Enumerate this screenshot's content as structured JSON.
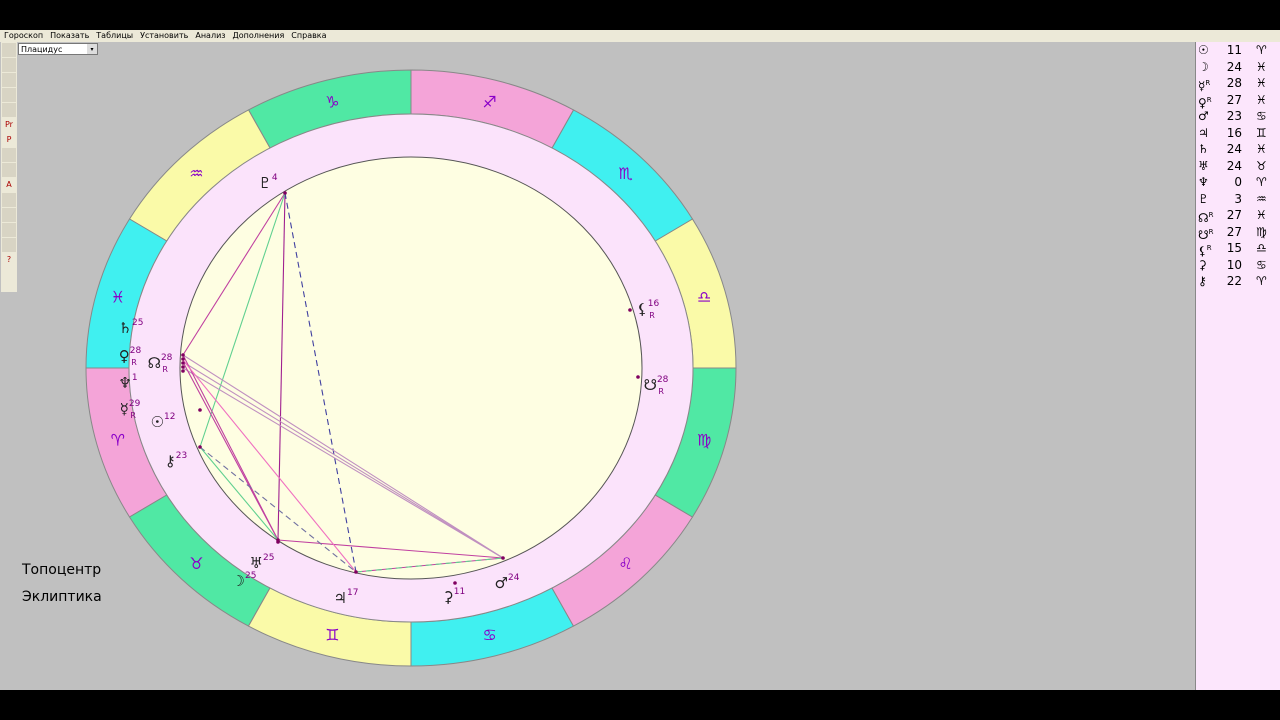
{
  "menu": [
    "Гороскоп",
    "Показать",
    "Таблицы",
    "Установить",
    "Анализ",
    "Дополнения",
    "Справка"
  ],
  "house_system": "Плацидус",
  "toolbar_labels": [
    "Pr",
    "P",
    "A",
    "?"
  ],
  "signs": [
    "♎",
    "♏",
    "♐",
    "♑",
    "♒",
    "♓",
    "♈",
    "♉",
    "♊",
    "♋",
    "♌",
    "♍"
  ],
  "chart_planets": [
    {
      "symbol": "♇",
      "degree": 4
    },
    {
      "symbol": "⚸",
      "degree": 16,
      "retro": "R"
    },
    {
      "symbol": "☋",
      "degree": 28,
      "retro": "R"
    },
    {
      "symbol": "♄",
      "degree": 25
    },
    {
      "symbol": "♀",
      "degree": 28,
      "retro": "R"
    },
    {
      "symbol": "☊",
      "degree": 28,
      "retro": "R"
    },
    {
      "symbol": "♆",
      "degree": 1
    },
    {
      "symbol": "☿",
      "degree": 29,
      "retro": "R"
    },
    {
      "symbol": "☉",
      "degree": 12
    },
    {
      "symbol": "⚷",
      "degree": 23
    },
    {
      "symbol": "♅",
      "degree": 25
    },
    {
      "symbol": "☽",
      "degree": 25
    },
    {
      "symbol": "♃",
      "degree": 17
    },
    {
      "symbol": "⚳",
      "degree": 11
    },
    {
      "symbol": "♂",
      "degree": 24
    }
  ],
  "table": [
    {
      "symbol": "☉",
      "degree": 11,
      "sign": "♈"
    },
    {
      "symbol": "☽",
      "degree": 24,
      "sign": "♓"
    },
    {
      "symbol": "☿",
      "retro": "R",
      "degree": 28,
      "sign": "♓"
    },
    {
      "symbol": "♀",
      "retro": "R",
      "degree": 27,
      "sign": "♓"
    },
    {
      "symbol": "♂",
      "degree": 23,
      "sign": "♋"
    },
    {
      "symbol": "♃",
      "degree": 16,
      "sign": "♊"
    },
    {
      "symbol": "♄",
      "degree": 24,
      "sign": "♓"
    },
    {
      "symbol": "♅",
      "degree": 24,
      "sign": "♉"
    },
    {
      "symbol": "♆",
      "degree": 0,
      "sign": "♈"
    },
    {
      "symbol": "♇",
      "degree": 3,
      "sign": "♒"
    },
    {
      "symbol": "☊",
      "retro": "R",
      "degree": 27,
      "sign": "♓"
    },
    {
      "symbol": "☋",
      "retro": "R",
      "degree": 27,
      "sign": "♍"
    },
    {
      "symbol": "⚸",
      "retro": "R",
      "degree": 15,
      "sign": "♎"
    },
    {
      "symbol": "⚳",
      "degree": 10,
      "sign": "♋"
    },
    {
      "symbol": "⚷",
      "degree": 22,
      "sign": "♈"
    }
  ],
  "notes": [
    "Топоцентр",
    "Эклиптика"
  ]
}
